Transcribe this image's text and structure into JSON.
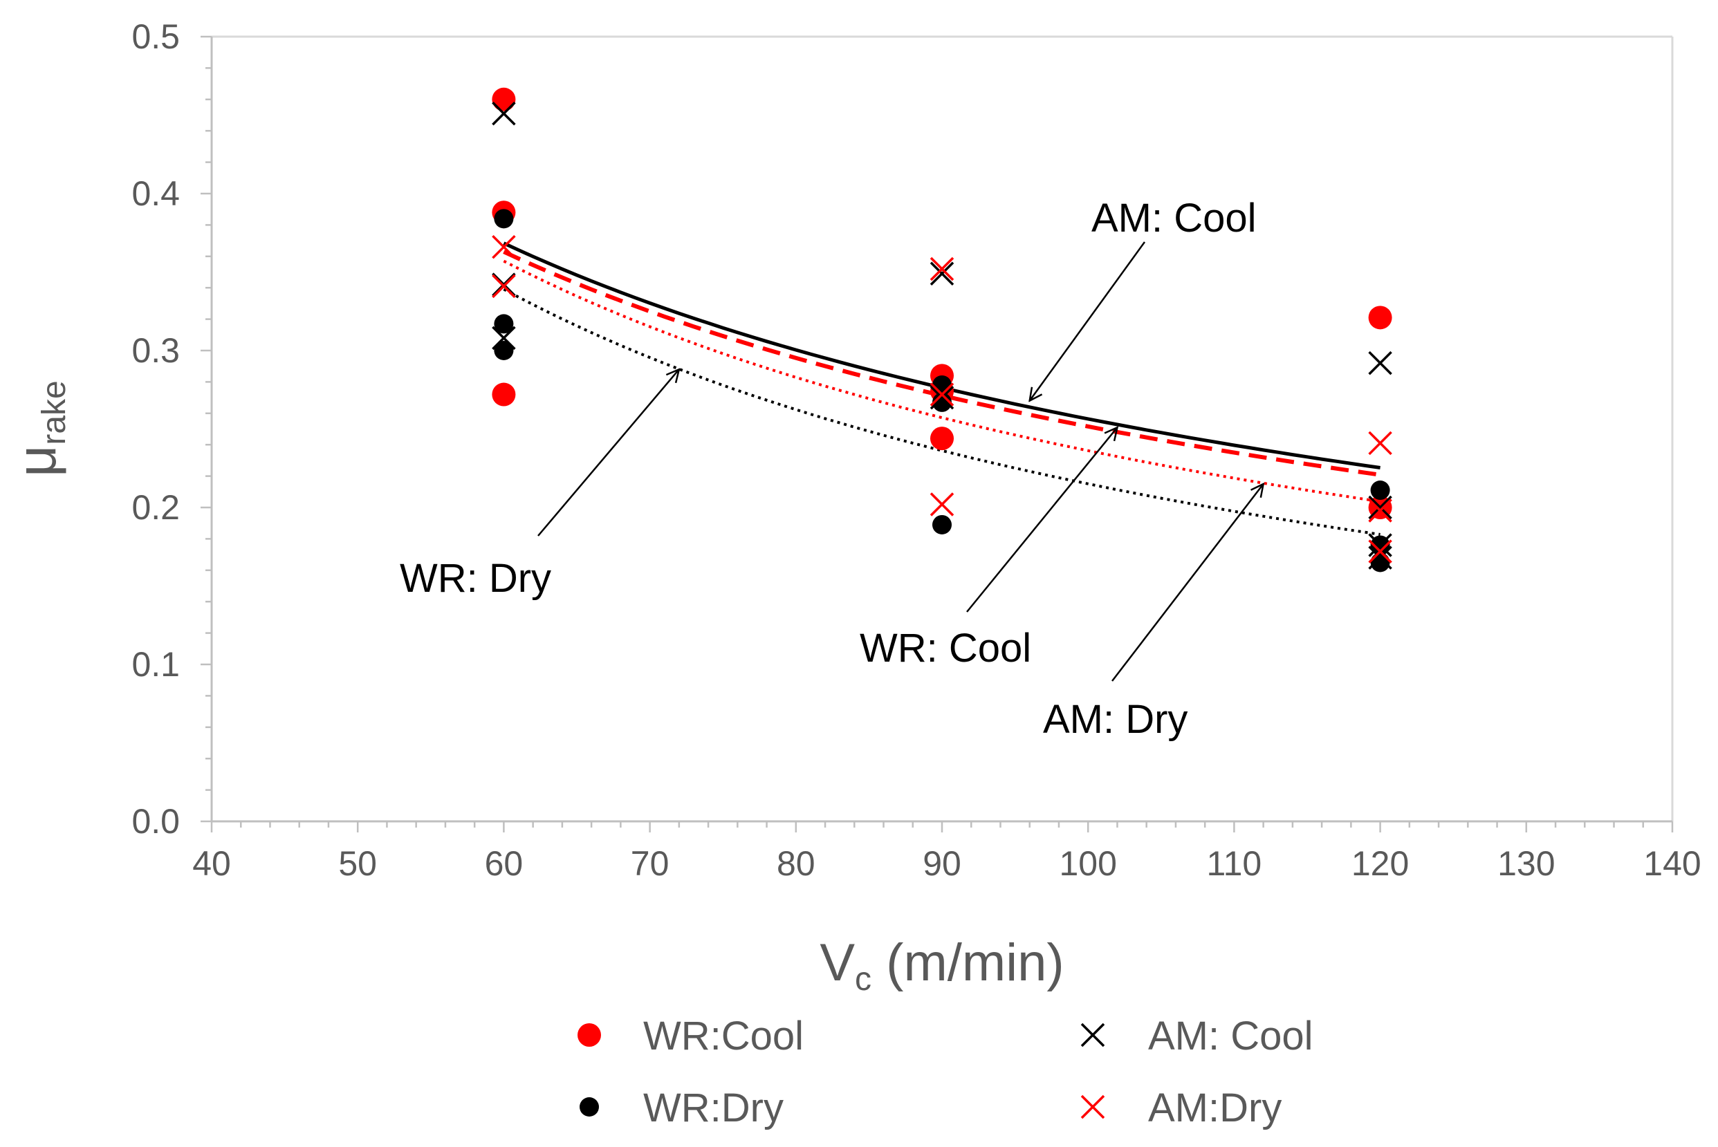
{
  "chart_data": {
    "type": "scatter",
    "title": "",
    "xlabel": "V",
    "xlabel_sub": "c",
    "xlabel_unit": " (m/min)",
    "ylabel": "μ",
    "ylabel_sub": "rake",
    "xlim": [
      40,
      140
    ],
    "ylim": [
      0.0,
      0.5
    ],
    "xticks": [
      40,
      50,
      60,
      70,
      80,
      90,
      100,
      110,
      120,
      130,
      140
    ],
    "yticks": [
      0.0,
      0.1,
      0.2,
      0.3,
      0.4,
      0.5
    ],
    "ytick_labels": [
      "0.0",
      "0.1",
      "0.2",
      "0.3",
      "0.4",
      "0.5"
    ],
    "grid": false,
    "legend_position": "bottom",
    "series": [
      {
        "name": "WR:Cool",
        "marker": "circle",
        "color": "#ff0000",
        "points": [
          [
            60,
            0.46
          ],
          [
            60,
            0.388
          ],
          [
            60,
            0.272
          ],
          [
            90,
            0.284
          ],
          [
            90,
            0.274
          ],
          [
            90,
            0.244
          ],
          [
            120,
            0.321
          ],
          [
            120,
            0.2
          ]
        ]
      },
      {
        "name": "WR:Dry",
        "marker": "circle",
        "color": "#000000",
        "points": [
          [
            60,
            0.384
          ],
          [
            60,
            0.317
          ],
          [
            60,
            0.3
          ],
          [
            90,
            0.278
          ],
          [
            90,
            0.267
          ],
          [
            90,
            0.189
          ],
          [
            120,
            0.211
          ],
          [
            120,
            0.176
          ],
          [
            120,
            0.165
          ]
        ]
      },
      {
        "name": "AM: Cool",
        "marker": "x",
        "color": "#000000",
        "points": [
          [
            60,
            0.451
          ],
          [
            60,
            0.342
          ],
          [
            60,
            0.308
          ],
          [
            90,
            0.349
          ],
          [
            90,
            0.27
          ],
          [
            120,
            0.292
          ],
          [
            120,
            0.2
          ],
          [
            120,
            0.176
          ],
          [
            120,
            0.168
          ]
        ]
      },
      {
        "name": "AM:Dry",
        "marker": "x",
        "color": "#ff0000",
        "points": [
          [
            60,
            0.366
          ],
          [
            60,
            0.341
          ],
          [
            90,
            0.352
          ],
          [
            90,
            0.272
          ],
          [
            90,
            0.202
          ],
          [
            120,
            0.241
          ],
          [
            120,
            0.198
          ],
          [
            120,
            0.172
          ]
        ]
      }
    ],
    "trendlines": [
      {
        "name": "AM: Cool",
        "color": "#000000",
        "style": "solid",
        "points": [
          [
            60,
            0.368
          ],
          [
            90,
            0.277
          ],
          [
            120,
            0.225
          ]
        ]
      },
      {
        "name": "WR: Cool",
        "color": "#ff0000",
        "style": "dashed",
        "points": [
          [
            60,
            0.362
          ],
          [
            90,
            0.273
          ],
          [
            120,
            0.22
          ]
        ]
      },
      {
        "name": "AM: Dry",
        "color": "#ff0000",
        "style": "dotted",
        "points": [
          [
            60,
            0.356
          ],
          [
            90,
            0.259
          ],
          [
            120,
            0.203
          ]
        ]
      },
      {
        "name": "WR: Dry",
        "color": "#000000",
        "style": "dotted",
        "points": [
          [
            60,
            0.338
          ],
          [
            90,
            0.238
          ],
          [
            120,
            0.182
          ]
        ]
      }
    ],
    "annotations": [
      {
        "text": "AM: Cool",
        "target": [
          96,
          0.268
        ]
      },
      {
        "text": "WR: Dry",
        "target": [
          72,
          0.288
        ]
      },
      {
        "text": "WR: Cool",
        "target": [
          102,
          0.251
        ]
      },
      {
        "text": "AM: Dry",
        "target": [
          112,
          0.215
        ]
      }
    ]
  }
}
